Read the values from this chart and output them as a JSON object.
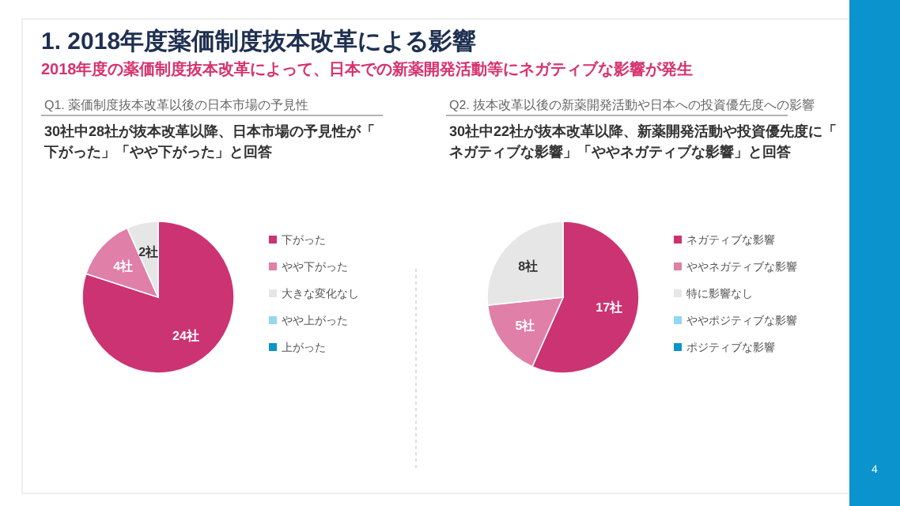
{
  "chart_data": [
    {
      "type": "pie",
      "title": "Q1. 薬価制度抜本改革以後の日本市場の予見性",
      "subtitle": "30社中28社が抜本改革以降、日本市場の予見性が「下がった」「やや下がった」と回答",
      "categories": [
        "下がった",
        "やや下がった",
        "大きな変化なし",
        "やや上がった",
        "上がった"
      ],
      "values": [
        24,
        4,
        2,
        0,
        0
      ],
      "colors": [
        "#cc3373",
        "#e07fa8",
        "#e6e6e6",
        "#92d8f0",
        "#0c93cc"
      ],
      "value_labels": [
        "24社",
        "4社",
        "2社",
        null,
        null
      ],
      "legend": "right",
      "annotations": [
        "1. 2018年度薬価制度抜本改革による影響",
        "2018年度の薬価制度抜本改革によって、日本での新薬開発活動等にネガティブな影響が発生"
      ]
    },
    {
      "type": "pie",
      "title": "Q2. 抜本改革以後の新薬開発活動や日本への投資優先度への影響",
      "subtitle": "30社中22社が抜本改革以降、新薬開発活動や投資優先度に「ネガティブな影響」「ややネガティブな影響」と回答",
      "categories": [
        "ネガティブな影響",
        "ややネガティブな影響",
        "特に影響なし",
        "ややポジティブな影響",
        "ポジティブな影響"
      ],
      "values": [
        17,
        5,
        8,
        0,
        0
      ],
      "colors": [
        "#cc3373",
        "#e07fa8",
        "#e6e6e6",
        "#92d8f0",
        "#0c93cc"
      ],
      "value_labels": [
        "17社",
        "5社",
        "8社",
        null,
        null
      ],
      "legend": "right",
      "annotations": [
        "4"
      ]
    }
  ]
}
